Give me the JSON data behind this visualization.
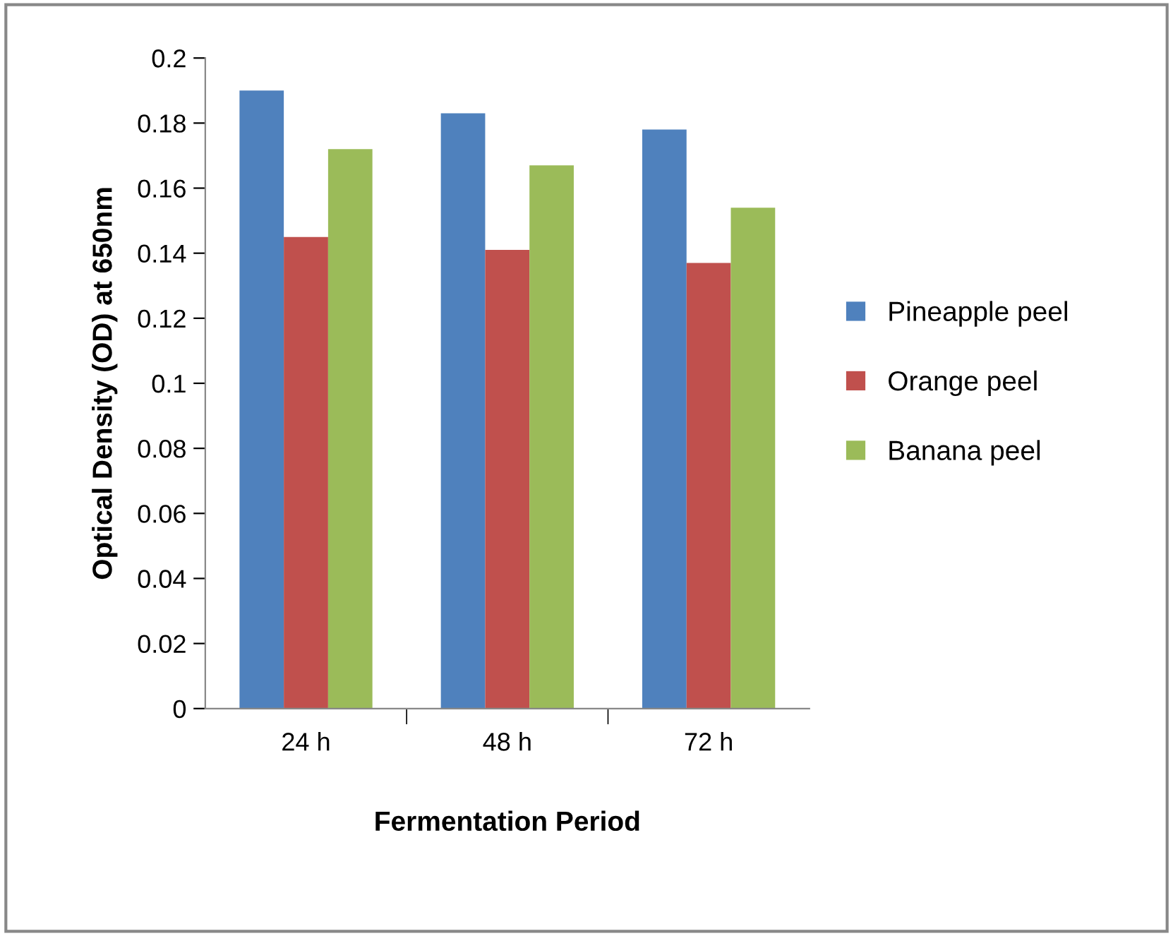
{
  "chart_data": {
    "type": "bar",
    "xlabel": "Fermentation Period",
    "ylabel": "Optical Density (OD) at 650nm",
    "categories": [
      "24 h",
      "48 h",
      "72 h"
    ],
    "series": [
      {
        "name": "Pineapple peel",
        "color": "#4f81bd",
        "values": [
          0.19,
          0.183,
          0.178
        ]
      },
      {
        "name": "Orange peel",
        "color": "#c0504d",
        "values": [
          0.145,
          0.141,
          0.137
        ]
      },
      {
        "name": "Banana peel",
        "color": "#9bbb59",
        "values": [
          0.172,
          0.167,
          0.154
        ]
      }
    ],
    "ylim": [
      0,
      0.2
    ],
    "yticks": [
      0,
      0.02,
      0.04,
      0.06,
      0.08,
      0.1,
      0.12,
      0.14,
      0.16,
      0.18,
      0.2
    ],
    "grid": false,
    "legend": "right"
  }
}
